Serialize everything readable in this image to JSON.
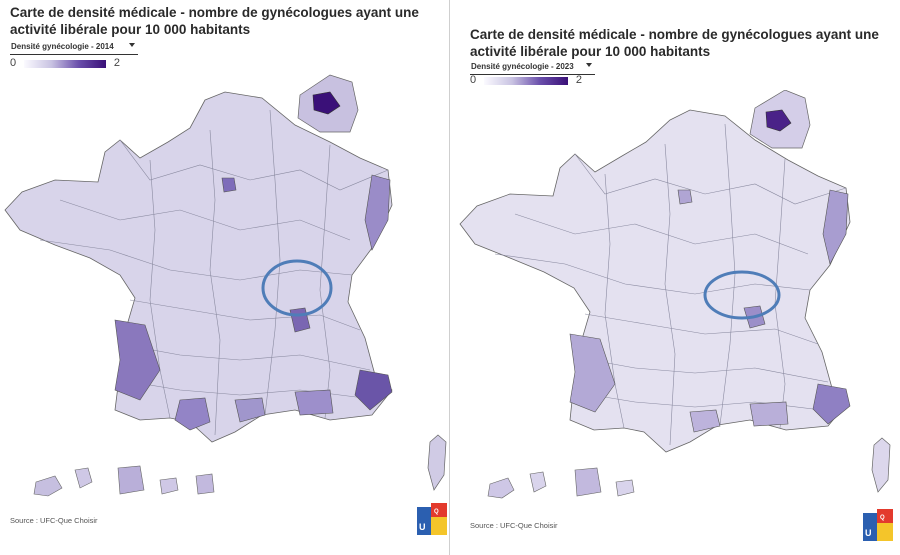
{
  "maps": [
    {
      "title": "Carte de densité médicale - nombre de gynécologues ayant une activité libérale pour 10 000 habitants",
      "dropdown_selected": "Densité gynécologie - 2014",
      "legend_min": "0",
      "legend_max": "2",
      "source": "Source : UFC-Que Choisir"
    },
    {
      "title": "Carte de densité médicale - nombre de gynécologues ayant une activité libérale pour 10 000 habitants",
      "dropdown_selected": "Densité gynécologie - 2023",
      "legend_min": "0",
      "legend_max": "2",
      "source": "Source : UFC-Que Choisir"
    }
  ],
  "colors": {
    "scale_low": "#fbfaff",
    "scale_mid": "#c9c3e2",
    "scale_high": "#3a1078",
    "highlight_circle": "#4f7db8",
    "region_border": "#555555"
  },
  "logo": {
    "lines": [
      "UFC",
      "QUE",
      "CHOISIR"
    ]
  }
}
